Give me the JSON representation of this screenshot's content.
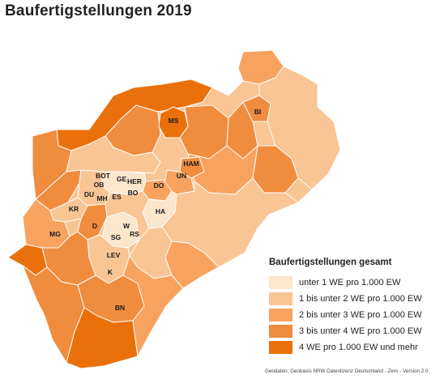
{
  "title": "Baufertigstellungen 2019",
  "legend": {
    "title": "Baufertigstellungen gesamt",
    "items": [
      {
        "label": "unter 1 WE pro 1.000 EW",
        "color": "#fce6cc"
      },
      {
        "label": "1 bis unter 2 WE pro 1.000 EW",
        "color": "#f9c594"
      },
      {
        "label": "2 bis unter 3 WE pro 1.000 EW",
        "color": "#f7a35f"
      },
      {
        "label": "3 bis unter 4 WE pro 1.000 EW",
        "color": "#f08c3e"
      },
      {
        "label": "4 WE pro 1.000 EW und mehr",
        "color": "#ea700b"
      }
    ]
  },
  "cities": [
    {
      "label": "MS",
      "cls": 4
    },
    {
      "label": "BI",
      "cls": 3
    },
    {
      "label": "HAM",
      "cls": 3
    },
    {
      "label": "UN",
      "cls": 3
    },
    {
      "label": "BOT",
      "cls": 1
    },
    {
      "label": "GE",
      "cls": 0
    },
    {
      "label": "HER",
      "cls": 0
    },
    {
      "label": "OB",
      "cls": 1
    },
    {
      "label": "DU",
      "cls": 1
    },
    {
      "label": "MH",
      "cls": 1
    },
    {
      "label": "ES",
      "cls": 1
    },
    {
      "label": "BO",
      "cls": 1
    },
    {
      "label": "DO",
      "cls": 2
    },
    {
      "label": "HA",
      "cls": 0
    },
    {
      "label": "KR",
      "cls": 1
    },
    {
      "label": "W",
      "cls": 0
    },
    {
      "label": "D",
      "cls": 3
    },
    {
      "label": "SG",
      "cls": 0
    },
    {
      "label": "RS",
      "cls": 0
    },
    {
      "label": "MG",
      "cls": 2
    },
    {
      "label": "LEV",
      "cls": 1
    },
    {
      "label": "K",
      "cls": 1
    },
    {
      "label": "BN",
      "cls": 3
    }
  ],
  "source": "Geodaten: Geobasis NRW Datenlizenz Deutschland - Zero - Version 2.0"
}
